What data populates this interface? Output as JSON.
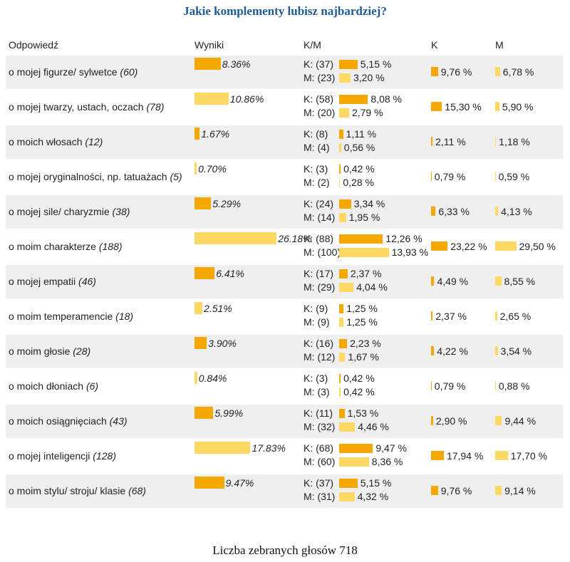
{
  "title": "Jakie komplementy lubisz najbardziej?",
  "headers": [
    "Odpowiedź",
    "Wyniki",
    "K/M",
    "K",
    "M"
  ],
  "rows": [
    {
      "answer": "o mojej figurze/ sylwetce",
      "count": "(60)",
      "result": {
        "value": 8.36,
        "label": "8.36%"
      },
      "k": {
        "count": "K: (37)",
        "value": 5.15,
        "label": "5,15 %"
      },
      "m": {
        "count": "M: (23)",
        "value": 3.2,
        "label": "3,20 %"
      },
      "k_total": {
        "value": 9.76,
        "label": "9,76 %"
      },
      "m_total": {
        "value": 6.78,
        "label": "6,78 %"
      }
    },
    {
      "answer": "o mojej twarzy, ustach, oczach",
      "count": "(78)",
      "result": {
        "value": 10.86,
        "label": "10.86%"
      },
      "k": {
        "count": "K: (58)",
        "value": 8.08,
        "label": "8,08 %"
      },
      "m": {
        "count": "M: (20)",
        "value": 2.79,
        "label": "2,79 %"
      },
      "k_total": {
        "value": 15.3,
        "label": "15,30 %"
      },
      "m_total": {
        "value": 5.9,
        "label": "5,90 %"
      }
    },
    {
      "answer": "o moich włosach",
      "count": "(12)",
      "result": {
        "value": 1.67,
        "label": "1.67%"
      },
      "k": {
        "count": "K: (8)",
        "value": 1.11,
        "label": "1,11 %"
      },
      "m": {
        "count": "M: (4)",
        "value": 0.56,
        "label": "0,56 %"
      },
      "k_total": {
        "value": 2.11,
        "label": "2,11 %"
      },
      "m_total": {
        "value": 1.18,
        "label": "1,18 %"
      }
    },
    {
      "answer": "o mojej oryginalności, np. tatuażach",
      "count": "(5)",
      "result": {
        "value": 0.7,
        "label": "0.70%"
      },
      "k": {
        "count": "K: (3)",
        "value": 0.42,
        "label": "0,42 %"
      },
      "m": {
        "count": "M: (2)",
        "value": 0.28,
        "label": "0,28 %"
      },
      "k_total": {
        "value": 0.79,
        "label": "0,79 %"
      },
      "m_total": {
        "value": 0.59,
        "label": "0,59 %"
      }
    },
    {
      "answer": "o mojej sile/ charyzmie",
      "count": "(38)",
      "result": {
        "value": 5.29,
        "label": "5.29%"
      },
      "k": {
        "count": "K: (24)",
        "value": 3.34,
        "label": "3,34 %"
      },
      "m": {
        "count": "M: (14)",
        "value": 1.95,
        "label": "1,95 %"
      },
      "k_total": {
        "value": 6.33,
        "label": "6,33 %"
      },
      "m_total": {
        "value": 4.13,
        "label": "4,13 %"
      }
    },
    {
      "answer": "o moim charakterze",
      "count": "(188)",
      "result": {
        "value": 26.18,
        "label": "26.18%"
      },
      "k": {
        "count": "K: (88)",
        "value": 12.26,
        "label": "12,26 %"
      },
      "m": {
        "count": "M: (100)",
        "value": 13.93,
        "label": "13,93 %"
      },
      "k_total": {
        "value": 23.22,
        "label": "23,22 %"
      },
      "m_total": {
        "value": 29.5,
        "label": "29,50 %"
      }
    },
    {
      "answer": "o mojej empatii",
      "count": "(46)",
      "result": {
        "value": 6.41,
        "label": "6.41%"
      },
      "k": {
        "count": "K: (17)",
        "value": 2.37,
        "label": "2,37 %"
      },
      "m": {
        "count": "M: (29)",
        "value": 4.04,
        "label": "4,04 %"
      },
      "k_total": {
        "value": 4.49,
        "label": "4,49 %"
      },
      "m_total": {
        "value": 8.55,
        "label": "8,55 %"
      }
    },
    {
      "answer": "o moim temperamencie",
      "count": "(18)",
      "result": {
        "value": 2.51,
        "label": "2.51%"
      },
      "k": {
        "count": "K: (9)",
        "value": 1.25,
        "label": "1,25 %"
      },
      "m": {
        "count": "M: (9)",
        "value": 1.25,
        "label": "1,25 %"
      },
      "k_total": {
        "value": 2.37,
        "label": "2,37 %"
      },
      "m_total": {
        "value": 2.65,
        "label": "2,65 %"
      }
    },
    {
      "answer": "o moim głosie",
      "count": "(28)",
      "result": {
        "value": 3.9,
        "label": "3.90%"
      },
      "k": {
        "count": "K: (16)",
        "value": 2.23,
        "label": "2,23 %"
      },
      "m": {
        "count": "M: (12)",
        "value": 1.67,
        "label": "1,67 %"
      },
      "k_total": {
        "value": 4.22,
        "label": "4,22 %"
      },
      "m_total": {
        "value": 3.54,
        "label": "3,54 %"
      }
    },
    {
      "answer": "o moich dłoniach",
      "count": "(6)",
      "result": {
        "value": 0.84,
        "label": "0.84%"
      },
      "k": {
        "count": "K: (3)",
        "value": 0.42,
        "label": "0,42 %"
      },
      "m": {
        "count": "M: (3)",
        "value": 0.42,
        "label": "0,42 %"
      },
      "k_total": {
        "value": 0.79,
        "label": "0,79 %"
      },
      "m_total": {
        "value": 0.88,
        "label": "0,88 %"
      }
    },
    {
      "answer": "o moich osiągnięciach",
      "count": "(43)",
      "result": {
        "value": 5.99,
        "label": "5.99%"
      },
      "k": {
        "count": "K: (11)",
        "value": 1.53,
        "label": "1,53 %"
      },
      "m": {
        "count": "M: (32)",
        "value": 4.46,
        "label": "4,46 %"
      },
      "k_total": {
        "value": 2.9,
        "label": "2,90 %"
      },
      "m_total": {
        "value": 9.44,
        "label": "9,44 %"
      }
    },
    {
      "answer": "o mojej inteligencji",
      "count": "(128)",
      "result": {
        "value": 17.83,
        "label": "17.83%"
      },
      "k": {
        "count": "K: (68)",
        "value": 9.47,
        "label": "9,47 %"
      },
      "m": {
        "count": "M: (60)",
        "value": 8.36,
        "label": "8,36 %"
      },
      "k_total": {
        "value": 17.94,
        "label": "17,94 %"
      },
      "m_total": {
        "value": 17.7,
        "label": "17,70 %"
      }
    },
    {
      "answer": "o moim stylu/ stroju/ klasie",
      "count": "(68)",
      "result": {
        "value": 9.47,
        "label": "9.47%"
      },
      "k": {
        "count": "K: (37)",
        "value": 5.15,
        "label": "5,15 %"
      },
      "m": {
        "count": "M: (31)",
        "value": 4.32,
        "label": "4,32 %"
      },
      "k_total": {
        "value": 9.76,
        "label": "9,76 %"
      },
      "m_total": {
        "value": 9.14,
        "label": "9,14 %"
      }
    }
  ],
  "footer": "Liczba zebranych głosów 718"
}
